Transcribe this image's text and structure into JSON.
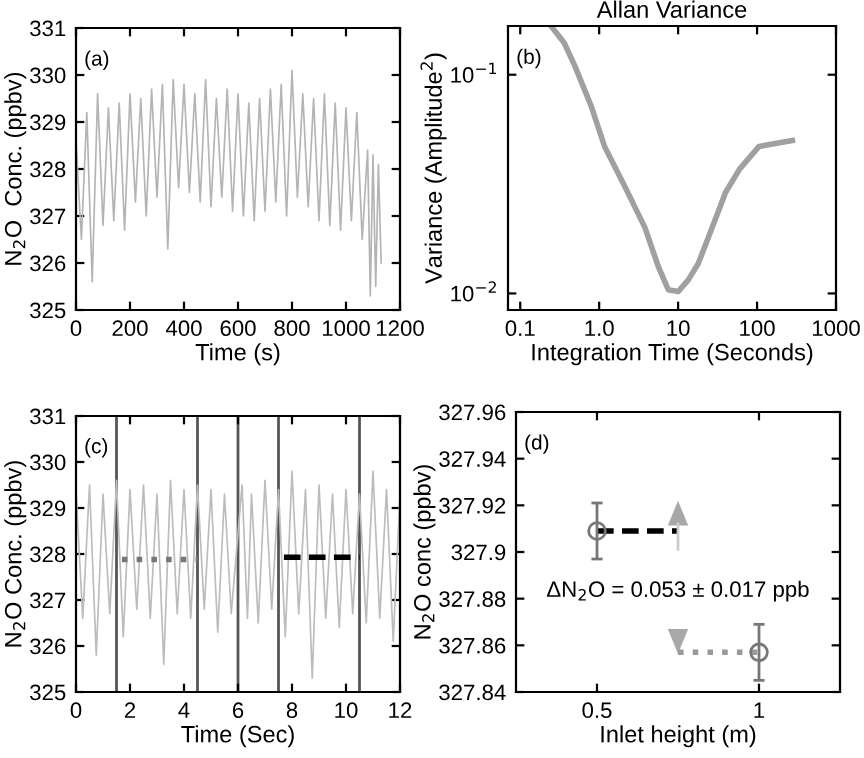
{
  "chart_data": [
    {
      "type": "line",
      "xlabel": "Time (s)",
      "ylabel": "N$_{2}$O  Conc. (ppbv)",
      "annotations": [
        "(a)"
      ],
      "xlim": [
        0,
        1200
      ],
      "ylim": [
        325,
        331
      ],
      "xticks": [
        0,
        200,
        400,
        600,
        800,
        1000,
        1200
      ],
      "yticks": [
        325,
        326,
        327,
        328,
        329,
        330,
        331
      ],
      "grid": false,
      "legend": false,
      "series": [
        {
          "color": "#b4b4b4",
          "line_style": "solid",
          "marker": "none",
          "x": [
            0,
            20,
            40,
            60,
            80,
            100,
            120,
            140,
            160,
            180,
            200,
            220,
            240,
            260,
            280,
            300,
            320,
            340,
            360,
            380,
            400,
            420,
            440,
            460,
            480,
            500,
            520,
            540,
            560,
            580,
            600,
            620,
            640,
            660,
            680,
            700,
            720,
            740,
            760,
            780,
            800,
            820,
            840,
            860,
            880,
            900,
            920,
            940,
            960,
            980,
            1000,
            1020,
            1040,
            1060,
            1080,
            1090,
            1100,
            1110,
            1120,
            1130
          ],
          "values": [
            328.6,
            326.5,
            329.2,
            325.6,
            329.6,
            326.8,
            329.3,
            326.9,
            329.4,
            326.7,
            329.6,
            327.3,
            329.5,
            327.0,
            329.7,
            327.4,
            329.8,
            326.3,
            329.9,
            327.6,
            329.8,
            327.5,
            329.6,
            327.3,
            329.9,
            327.2,
            329.5,
            327.4,
            329.7,
            327.1,
            329.6,
            327.0,
            329.4,
            326.9,
            329.5,
            327.1,
            329.7,
            327.3,
            329.8,
            327.0,
            330.1,
            327.4,
            329.6,
            327.2,
            329.5,
            326.9,
            329.6,
            326.8,
            329.4,
            326.7,
            329.3,
            326.9,
            329.2,
            326.5,
            328.4,
            325.3,
            328.3,
            325.5,
            328.1,
            326.0
          ]
        }
      ]
    },
    {
      "type": "line",
      "title": "Allan Variance",
      "xlabel": "Integration Time (Seconds)",
      "ylabel": "Variance (Amplitude$^{2}$)",
      "annotations": [
        "(b)"
      ],
      "log": "xy",
      "xlim": [
        0.07,
        1000
      ],
      "ylim": [
        0.0084,
        0.167
      ],
      "xticks": [
        {
          "value": 0.1,
          "label": "0.1"
        },
        {
          "value": 1,
          "label": "1.0"
        },
        10,
        100,
        1000
      ],
      "yticks": [
        {
          "value": 0.01,
          "label": "10$^{−2}$"
        },
        {
          "value": 0.1,
          "label": "10$^{−1}$"
        }
      ],
      "grid": false,
      "legend": false,
      "series": [
        {
          "color": "#a0a0a0",
          "line_style": "solid",
          "marker": "none",
          "x": [
            0.245,
            0.36,
            0.49,
            0.79,
            1.17,
            2.1,
            3.8,
            5.6,
            7.5,
            10,
            13.4,
            18,
            27,
            40,
            60,
            106,
            280
          ],
          "values": [
            0.167,
            0.14,
            0.11,
            0.072,
            0.047,
            0.031,
            0.02,
            0.0133,
            0.0104,
            0.0102,
            0.0115,
            0.0137,
            0.02,
            0.029,
            0.037,
            0.047,
            0.05
          ]
        }
      ]
    },
    {
      "type": "line",
      "xlabel": "Time (Sec)",
      "ylabel": "N$_{2}$O Conc. (ppbv)",
      "annotations": [
        "(c)"
      ],
      "xlim": [
        0,
        12
      ],
      "ylim": [
        325,
        331
      ],
      "xticks": [
        0,
        2,
        4,
        6,
        8,
        10,
        12
      ],
      "yticks": [
        325,
        326,
        327,
        328,
        329,
        330,
        331
      ],
      "grid": false,
      "legend": false,
      "ref_lines": [
        {
          "axis": "x",
          "value": 1.5,
          "color": "#555555"
        },
        {
          "axis": "x",
          "value": 4.5,
          "color": "#555555"
        },
        {
          "axis": "x",
          "value": 6,
          "color": "#555555"
        },
        {
          "axis": "x",
          "value": 7.5,
          "color": "#555555"
        },
        {
          "axis": "x",
          "value": 10.5,
          "color": "#555555"
        }
      ],
      "series": [
        {
          "color": "#bcbcbc",
          "line_style": "solid",
          "marker": "none",
          "x": [
            0,
            0.25,
            0.5,
            0.75,
            1,
            1.25,
            1.5,
            1.75,
            2,
            2.25,
            2.5,
            2.75,
            3,
            3.25,
            3.5,
            3.75,
            4,
            4.25,
            4.5,
            4.75,
            5,
            5.25,
            5.5,
            5.75,
            6.15,
            6.35,
            6.5,
            6.75,
            7,
            7.25,
            7.5,
            7.75,
            8,
            8.25,
            8.5,
            8.75,
            9,
            9.25,
            9.5,
            9.75,
            10,
            10.25,
            10.5,
            10.75,
            11,
            11.25,
            11.5,
            11.75,
            12
          ],
          "values": [
            329.4,
            326.6,
            329.5,
            325.8,
            329.3,
            326.7,
            329.6,
            326.2,
            329.4,
            326.8,
            329.5,
            326.6,
            329.3,
            325.6,
            329.6,
            326.7,
            329.4,
            326.6,
            329.5,
            326.8,
            329.4,
            326.3,
            329.3,
            326.7,
            329.5,
            326.6,
            329.3,
            326.5,
            329.6,
            326.8,
            329.4,
            326.2,
            329.8,
            326.7,
            329.4,
            325.3,
            329.5,
            326.6,
            329.3,
            326.4,
            329.4,
            326.7,
            329.3,
            326.5,
            329.8,
            326.6,
            329.4,
            326.1,
            329.3
          ]
        },
        {
          "color": "#777777",
          "line_style": "dotted",
          "marker": "none",
          "x": [
            1.7,
            4.5
          ],
          "values": [
            327.88,
            327.88
          ]
        },
        {
          "color": "#000000",
          "line_style": "dashed",
          "marker": "none",
          "x": [
            7.7,
            10.5
          ],
          "values": [
            327.93,
            327.93
          ]
        }
      ]
    },
    {
      "type": "scatter",
      "xlabel": "Inlet height (m)",
      "ylabel": "N$_{2}$O conc (ppbv)",
      "annotations": [
        "(d)",
        "ΔN$_{2}$O = 0.053 ± 0.017 ppb"
      ],
      "xlim": [
        0.25,
        1.25
      ],
      "ylim": [
        327.84,
        327.96
      ],
      "xticks": [
        0.5,
        1
      ],
      "yticks": [
        {
          "value": 327.84,
          "label": "327.84"
        },
        {
          "value": 327.86,
          "label": "327.86"
        },
        {
          "value": 327.88,
          "label": "327.88"
        },
        {
          "value": 327.9,
          "label": "327.9"
        },
        {
          "value": 327.92,
          "label": "327.92"
        },
        {
          "value": 327.94,
          "label": "327.94"
        },
        {
          "value": 327.96,
          "label": "327.96"
        }
      ],
      "grid": false,
      "legend": false,
      "series": [
        {
          "type": "line",
          "color": "#000000",
          "line_style": "dashed",
          "marker": "none",
          "x": [
            0.5,
            0.75
          ],
          "values": [
            327.909,
            327.909
          ]
        },
        {
          "type": "line",
          "color": "#999999",
          "line_style": "dotted",
          "marker": "none",
          "x": [
            0.75,
            1
          ],
          "values": [
            327.857,
            327.857
          ]
        },
        {
          "type": "scatter",
          "color": "#777777",
          "marker": "circle",
          "x": [
            0.5,
            1
          ],
          "values": [
            327.909,
            327.857
          ],
          "errors": [
            0.012,
            0.012
          ]
        }
      ]
    }
  ]
}
